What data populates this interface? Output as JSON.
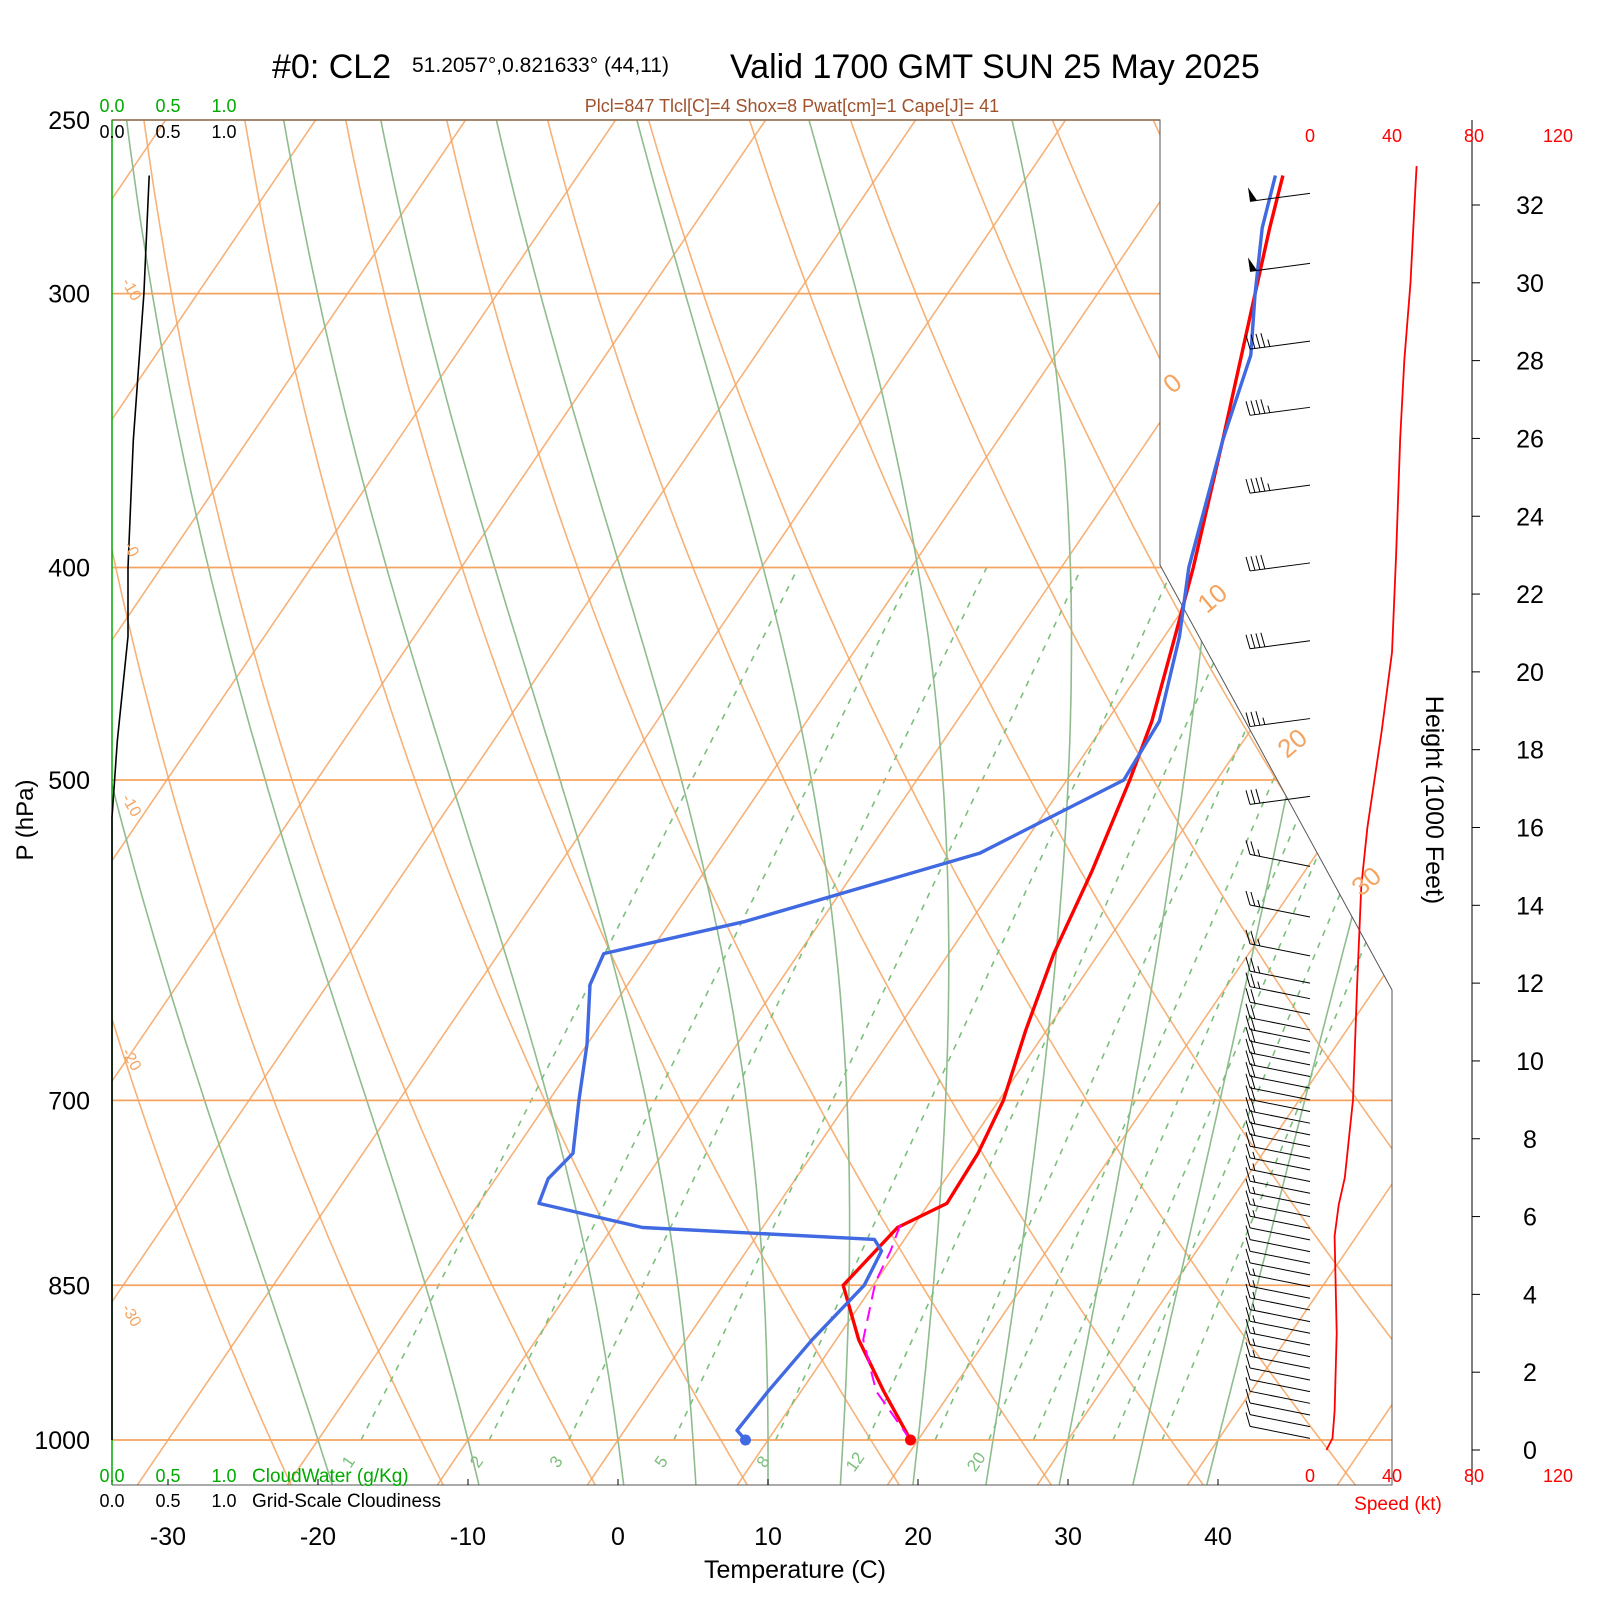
{
  "header": {
    "station": "#0: CL2",
    "coords": "51.2057°,0.821633° (44,11)",
    "valid": "Valid 1700 GMT SUN 25 May 2025",
    "indices": "Plcl=847 Tlcl[C]=4 Shox=8 Pwat[cm]=1 Cape[J]= 41"
  },
  "axes": {
    "xlabel": "Temperature (C)",
    "ylabel": "P (hPa)",
    "height_label": "Height (1000 Feet)",
    "speed_label": "Speed (kt)",
    "temp_ticks": [
      -30,
      -20,
      -10,
      0,
      10,
      20,
      30,
      40
    ],
    "pressure_ticks": [
      250,
      300,
      400,
      500,
      700,
      850,
      1000
    ],
    "height_ticks": [
      0,
      2,
      4,
      6,
      8,
      10,
      12,
      14,
      16,
      18,
      20,
      22,
      24,
      26,
      28,
      30,
      32
    ],
    "speed_ticks": [
      "0",
      "40",
      "80",
      "120"
    ],
    "cloud_scale": [
      "0.0",
      "0.5",
      "1.0"
    ],
    "cloudwater_label": "CloudWater (g/Kg)",
    "cloudiness_label": "Grid-Scale Cloudiness",
    "isotherm_labels": [
      "-30",
      "-20",
      "-10",
      "0",
      "10",
      "20",
      "30"
    ],
    "mixing_ratio_labels": [
      "1",
      "2",
      "3",
      "5",
      "8",
      "12",
      "20"
    ]
  },
  "colors": {
    "temperature": "#ff0000",
    "dewpoint": "#4169e1",
    "parcel": "#ff00ff",
    "isotherm": "#f4a460",
    "adiabat": "#8fbc8f",
    "mixing_ratio": "#7cbf7c",
    "cloud_green": "#00aa00",
    "indices": "#a0522d"
  },
  "chart_data": {
    "type": "line",
    "title": "#0: CL2 51.2057°,0.821633° (44,11) Valid 1700 GMT SUN 25 May 2025",
    "xlabel": "Temperature (C)",
    "ylabel": "P (hPa)",
    "xlim": [
      -33,
      36
    ],
    "ylim": [
      1030,
      250
    ],
    "series": [
      {
        "name": "Temperature",
        "points": [
          [
            1000,
            19.5
          ],
          [
            950,
            15.5
          ],
          [
            900,
            11.5
          ],
          [
            850,
            8.0
          ],
          [
            800,
            9.0
          ],
          [
            780,
            11.2
          ],
          [
            740,
            11.0
          ],
          [
            700,
            10.3
          ],
          [
            650,
            8.6
          ],
          [
            600,
            7.0
          ],
          [
            550,
            5.8
          ],
          [
            500,
            4.2
          ],
          [
            470,
            3.0
          ],
          [
            430,
            0.7
          ],
          [
            400,
            -1.2
          ],
          [
            350,
            -5.0
          ],
          [
            300,
            -9.5
          ],
          [
            280,
            -11.5
          ],
          [
            265,
            -13.0
          ]
        ]
      },
      {
        "name": "Dewpoint",
        "points": [
          [
            1000,
            8.5
          ],
          [
            990,
            7.5
          ],
          [
            950,
            7.8
          ],
          [
            900,
            8.4
          ],
          [
            850,
            9.4
          ],
          [
            820,
            9.0
          ],
          [
            810,
            8.0
          ],
          [
            800,
            -8.0
          ],
          [
            780,
            -16.0
          ],
          [
            760,
            -16.5
          ],
          [
            740,
            -16.0
          ],
          [
            700,
            -18.0
          ],
          [
            660,
            -20.0
          ],
          [
            620,
            -22.5
          ],
          [
            600,
            -23.0
          ],
          [
            580,
            -15.0
          ],
          [
            540,
            -2.5
          ],
          [
            500,
            3.8
          ],
          [
            470,
            3.5
          ],
          [
            430,
            1.0
          ],
          [
            400,
            -1.5
          ],
          [
            350,
            -5.0
          ],
          [
            320,
            -7.0
          ],
          [
            300,
            -9.5
          ],
          [
            280,
            -12.0
          ],
          [
            265,
            -13.5
          ]
        ]
      },
      {
        "name": "Parcel",
        "points": [
          [
            1000,
            19.5
          ],
          [
            950,
            15.0
          ],
          [
            900,
            11.8
          ],
          [
            847,
            10.0
          ],
          [
            820,
            9.6
          ],
          [
            795,
            9.0
          ]
        ]
      }
    ],
    "cloudiness": [
      [
        1000,
        0.0
      ],
      [
        900,
        0.0
      ],
      [
        700,
        0.0
      ],
      [
        600,
        0.0
      ],
      [
        520,
        0.0
      ],
      [
        480,
        0.05
      ],
      [
        430,
        0.15
      ],
      [
        400,
        0.15
      ],
      [
        350,
        0.2
      ],
      [
        300,
        0.3
      ],
      [
        265,
        0.35
      ]
    ],
    "wind_speed_kt": [
      [
        0,
        8
      ],
      [
        0.3,
        11
      ],
      [
        1,
        12
      ],
      [
        3,
        13
      ],
      [
        5.5,
        12
      ],
      [
        6.3,
        14
      ],
      [
        7,
        17
      ],
      [
        9,
        21
      ],
      [
        12,
        23
      ],
      [
        14.5,
        25
      ],
      [
        16,
        28
      ],
      [
        18.5,
        35
      ],
      [
        20.5,
        40
      ],
      [
        23,
        42
      ],
      [
        26,
        44
      ],
      [
        28,
        46
      ],
      [
        30,
        49
      ],
      [
        32,
        51
      ],
      [
        33,
        52
      ]
    ],
    "wind_barb_heights_kft": [
      0.3,
      0.6,
      0.9,
      1.2,
      1.5,
      1.8,
      2.1,
      2.4,
      2.7,
      3.0,
      3.3,
      3.6,
      3.9,
      4.2,
      4.5,
      4.8,
      5.1,
      5.4,
      5.7,
      6.0,
      6.3,
      6.6,
      6.9,
      7.2,
      7.5,
      7.8,
      8.1,
      8.4,
      8.7,
      9.0,
      9.3,
      9.6,
      9.9,
      10.2,
      10.5,
      10.8,
      11.2,
      11.6,
      12.0,
      12.7,
      13.7,
      15.0,
      16.8,
      18.8,
      20.8,
      22.8,
      24.8,
      26.8,
      28.5,
      30.5,
      32.3
    ]
  }
}
